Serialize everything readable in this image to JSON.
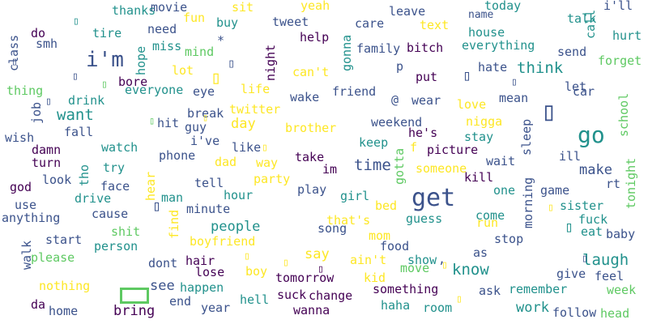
{
  "palette": [
    "#440154",
    "#3b528b",
    "#21918c",
    "#5ec962",
    "#fde725"
  ],
  "words": [
    {
      "text": "thanks",
      "color": "#21918c"
    },
    {
      "text": "movie",
      "color": "#3b528b"
    },
    {
      "text": "sit",
      "color": "#fde725"
    },
    {
      "text": "yeah",
      "color": "#fde725"
    },
    {
      "text": "leave",
      "color": "#3b528b"
    },
    {
      "text": "name",
      "color": "#3b528b"
    },
    {
      "text": "today",
      "color": "#21918c"
    },
    {
      "text": "i'll",
      "color": "#3b528b"
    },
    {
      "text": "fun",
      "color": "#fde725"
    },
    {
      "text": "buy",
      "color": "#21918c"
    },
    {
      "text": "tweet",
      "color": "#3b528b"
    },
    {
      "text": "care",
      "color": "#3b528b"
    },
    {
      "text": "text",
      "color": "#fde725"
    },
    {
      "text": "talk",
      "color": "#21918c"
    },
    {
      "text": "do",
      "color": "#440154"
    },
    {
      "text": "tire",
      "color": "#21918c"
    },
    {
      "text": "need",
      "color": "#3b528b"
    },
    {
      "text": "help",
      "color": "#440154"
    },
    {
      "text": "house",
      "color": "#21918c"
    },
    {
      "text": "call",
      "color": "#21918c"
    },
    {
      "text": "hurt",
      "color": "#21918c"
    },
    {
      "text": "class",
      "color": "#3b528b"
    },
    {
      "text": "smh",
      "color": "#3b528b"
    },
    {
      "text": "miss",
      "color": "#21918c"
    },
    {
      "text": "mind",
      "color": "#5ec962"
    },
    {
      "text": "family",
      "color": "#3b528b"
    },
    {
      "text": "bitch",
      "color": "#440154"
    },
    {
      "text": "everything",
      "color": "#21918c"
    },
    {
      "text": "send",
      "color": "#3b528b"
    },
    {
      "text": "i'm",
      "color": "#3b528b"
    },
    {
      "text": "hope",
      "color": "#21918c"
    },
    {
      "text": "night",
      "color": "#440154"
    },
    {
      "text": "gonna",
      "color": "#21918c"
    },
    {
      "text": "forget",
      "color": "#5ec962"
    },
    {
      "text": "lot",
      "color": "#fde725"
    },
    {
      "text": "can't",
      "color": "#fde725"
    },
    {
      "text": "p",
      "color": "#3b528b"
    },
    {
      "text": "hate",
      "color": "#3b528b"
    },
    {
      "text": "think",
      "color": "#21918c"
    },
    {
      "text": "bore",
      "color": "#440154"
    },
    {
      "text": "put",
      "color": "#440154"
    },
    {
      "text": "thing",
      "color": "#5ec962"
    },
    {
      "text": "everyone",
      "color": "#21918c"
    },
    {
      "text": "eye",
      "color": "#3b528b"
    },
    {
      "text": "life",
      "color": "#fde725"
    },
    {
      "text": "wake",
      "color": "#3b528b"
    },
    {
      "text": "friend",
      "color": "#3b528b"
    },
    {
      "text": "let",
      "color": "#3b528b"
    },
    {
      "text": "car",
      "color": "#3b528b"
    },
    {
      "text": "drink",
      "color": "#21918c"
    },
    {
      "text": "@",
      "color": "#3b528b"
    },
    {
      "text": "wear",
      "color": "#3b528b"
    },
    {
      "text": "love",
      "color": "#fde725"
    },
    {
      "text": "mean",
      "color": "#3b528b"
    },
    {
      "text": "job",
      "color": "#3b528b"
    },
    {
      "text": "want",
      "color": "#21918c"
    },
    {
      "text": "twitter",
      "color": "#fde725"
    },
    {
      "text": "break",
      "color": "#3b528b"
    },
    {
      "text": "school",
      "color": "#5ec962"
    },
    {
      "text": "hit",
      "color": "#3b528b"
    },
    {
      "text": "guy",
      "color": "#3b528b"
    },
    {
      "text": "day",
      "color": "#fde725"
    },
    {
      "text": "brother",
      "color": "#fde725"
    },
    {
      "text": "weekend",
      "color": "#3b528b"
    },
    {
      "text": "nigga",
      "color": "#fde725"
    },
    {
      "text": "fall",
      "color": "#3b528b"
    },
    {
      "text": "go",
      "color": "#21918c"
    },
    {
      "text": "he's",
      "color": "#440154"
    },
    {
      "text": "sleep",
      "color": "#3b528b"
    },
    {
      "text": "wish",
      "color": "#3b528b"
    },
    {
      "text": "i've",
      "color": "#3b528b"
    },
    {
      "text": "stay",
      "color": "#21918c"
    },
    {
      "text": "keep",
      "color": "#21918c"
    },
    {
      "text": "damn",
      "color": "#440154"
    },
    {
      "text": "watch",
      "color": "#21918c"
    },
    {
      "text": "like",
      "color": "#3b528b"
    },
    {
      "text": "f",
      "color": "#fde725"
    },
    {
      "text": "picture",
      "color": "#440154"
    },
    {
      "text": "ill",
      "color": "#3b528b"
    },
    {
      "text": "turn",
      "color": "#440154"
    },
    {
      "text": "phone",
      "color": "#3b528b"
    },
    {
      "text": "take",
      "color": "#440154"
    },
    {
      "text": "time",
      "color": "#3b528b"
    },
    {
      "text": "wait",
      "color": "#3b528b"
    },
    {
      "text": "tonight",
      "color": "#5ec962"
    },
    {
      "text": "tho",
      "color": "#21918c"
    },
    {
      "text": "try",
      "color": "#21918c"
    },
    {
      "text": "dad",
      "color": "#fde725"
    },
    {
      "text": "way",
      "color": "#fde725"
    },
    {
      "text": "im",
      "color": "#440154"
    },
    {
      "text": "someone",
      "color": "#fde725"
    },
    {
      "text": "make",
      "color": "#3b528b"
    },
    {
      "text": "look",
      "color": "#3b528b"
    },
    {
      "text": "party",
      "color": "#fde725"
    },
    {
      "text": "gotta",
      "color": "#5ec962"
    },
    {
      "text": "kill",
      "color": "#440154"
    },
    {
      "text": "god",
      "color": "#440154"
    },
    {
      "text": "face",
      "color": "#3b528b"
    },
    {
      "text": "tell",
      "color": "#3b528b"
    },
    {
      "text": "hear",
      "color": "#fde725"
    },
    {
      "text": "play",
      "color": "#3b528b"
    },
    {
      "text": "rt",
      "color": "#3b528b"
    },
    {
      "text": "drive",
      "color": "#21918c"
    },
    {
      "text": "one",
      "color": "#21918c"
    },
    {
      "text": "game",
      "color": "#3b528b"
    },
    {
      "text": "man",
      "color": "#21918c"
    },
    {
      "text": "hour",
      "color": "#21918c"
    },
    {
      "text": "girl",
      "color": "#21918c"
    },
    {
      "text": "get",
      "color": "#3b528b"
    },
    {
      "text": "morning",
      "color": "#3b528b"
    },
    {
      "text": "use",
      "color": "#3b528b"
    },
    {
      "text": "minute",
      "color": "#3b528b"
    },
    {
      "text": "bed",
      "color": "#fde725"
    },
    {
      "text": "sister",
      "color": "#21918c"
    },
    {
      "text": "cause",
      "color": "#3b528b"
    },
    {
      "text": "come",
      "color": "#21918c"
    },
    {
      "text": "fuck",
      "color": "#21918c"
    },
    {
      "text": "anything",
      "color": "#3b528b"
    },
    {
      "text": "people",
      "color": "#21918c"
    },
    {
      "text": "that's",
      "color": "#fde725"
    },
    {
      "text": "guess",
      "color": "#21918c"
    },
    {
      "text": "run",
      "color": "#fde725"
    },
    {
      "text": "find",
      "color": "#fde725"
    },
    {
      "text": "song",
      "color": "#3b528b"
    },
    {
      "text": "eat",
      "color": "#21918c"
    },
    {
      "text": "baby",
      "color": "#3b528b"
    },
    {
      "text": "shit",
      "color": "#5ec962"
    },
    {
      "text": "mom",
      "color": "#fde725"
    },
    {
      "text": "boyfriend",
      "color": "#fde725"
    },
    {
      "text": "start",
      "color": "#3b528b"
    },
    {
      "text": "food",
      "color": "#3b528b"
    },
    {
      "text": "stop",
      "color": "#3b528b"
    },
    {
      "text": "person",
      "color": "#21918c"
    },
    {
      "text": "walk",
      "color": "#3b528b"
    },
    {
      "text": "say",
      "color": "#fde725"
    },
    {
      "text": "as",
      "color": "#3b528b"
    },
    {
      "text": "please",
      "color": "#5ec962"
    },
    {
      "text": "dont",
      "color": "#3b528b"
    },
    {
      "text": "hair",
      "color": "#440154"
    },
    {
      "text": "ain't",
      "color": "#fde725"
    },
    {
      "text": "show",
      "color": "#21918c"
    },
    {
      "text": "laugh",
      "color": "#21918c"
    },
    {
      "text": "boy",
      "color": "#fde725"
    },
    {
      "text": "lose",
      "color": "#440154"
    },
    {
      "text": "know",
      "color": "#21918c"
    },
    {
      "text": "give",
      "color": "#3b528b"
    },
    {
      "text": "move",
      "color": "#5ec962"
    },
    {
      "text": "feel",
      "color": "#3b528b"
    },
    {
      "text": "tomorrow",
      "color": "#440154"
    },
    {
      "text": "kid",
      "color": "#fde725"
    },
    {
      "text": "nothing",
      "color": "#fde725"
    },
    {
      "text": "see",
      "color": "#3b528b"
    },
    {
      "text": "happen",
      "color": "#21918c"
    },
    {
      "text": "something",
      "color": "#440154"
    },
    {
      "text": "ask",
      "color": "#3b528b"
    },
    {
      "text": "remember",
      "color": "#21918c"
    },
    {
      "text": "week",
      "color": "#5ec962"
    },
    {
      "text": "suck",
      "color": "#440154"
    },
    {
      "text": "change",
      "color": "#440154"
    },
    {
      "text": "da",
      "color": "#440154"
    },
    {
      "text": "end",
      "color": "#3b528b"
    },
    {
      "text": "hell",
      "color": "#21918c"
    },
    {
      "text": "bring",
      "color": "#440154"
    },
    {
      "text": "haha",
      "color": "#21918c"
    },
    {
      "text": "room",
      "color": "#21918c"
    },
    {
      "text": "work",
      "color": "#21918c"
    },
    {
      "text": "follow",
      "color": "#3b528b"
    },
    {
      "text": "head",
      "color": "#5ec962"
    },
    {
      "text": "home",
      "color": "#3b528b"
    },
    {
      "text": "year",
      "color": "#3b528b"
    },
    {
      "text": "wanna",
      "color": "#440154"
    },
    {
      "text": "*",
      "color": "#3b528b"
    },
    {
      "text": ",",
      "color": "#3b528b"
    }
  ],
  "glyphs": [
    {
      "text": "▯",
      "color": "#21918c"
    },
    {
      "text": "▯",
      "color": "#3b528b"
    },
    {
      "text": "▯",
      "color": "#3b528b"
    },
    {
      "text": "▯",
      "color": "#3b528b"
    },
    {
      "text": "▯",
      "color": "#fde725"
    },
    {
      "text": "▯",
      "color": "#5ec962"
    },
    {
      "text": "▯",
      "color": "#3b528b"
    },
    {
      "text": "▯",
      "color": "#3b528b"
    },
    {
      "text": "▯",
      "color": "#3b528b"
    },
    {
      "text": "▯",
      "color": "#3b528b"
    },
    {
      "text": "▯",
      "color": "#fde725"
    },
    {
      "text": "▯",
      "color": "#3b528b"
    },
    {
      "text": "▯",
      "color": "#fde725"
    },
    {
      "text": "▯",
      "color": "#21918c"
    },
    {
      "text": "▯",
      "color": "#fde725"
    },
    {
      "text": "▯",
      "color": "#fde725"
    },
    {
      "text": "▯",
      "color": "#3b528b"
    },
    {
      "text": "▯",
      "color": "#440154"
    },
    {
      "text": "▯",
      "color": "#fde725"
    },
    {
      "text": "▯",
      "color": "#fde725"
    },
    {
      "text": "▯",
      "color": "#5ec962"
    },
    {
      "text": "▯",
      "color": "#fde725"
    }
  ]
}
